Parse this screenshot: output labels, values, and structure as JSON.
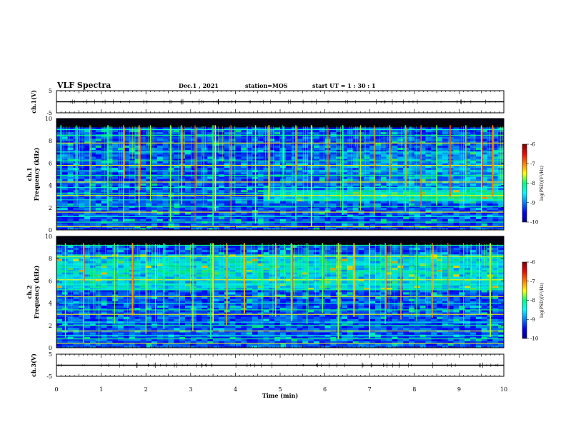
{
  "header": {
    "title": "VLF Spectra",
    "date": "Dec.1  , 2021",
    "station": "station=MOS",
    "start": "start  UT =   1 : 30 : 1"
  },
  "chart_data": [
    {
      "type": "line",
      "name": "ch1-waveform",
      "ylabel": "ch.1(V)",
      "ylim": [
        -5,
        5
      ],
      "yticks": [
        5,
        -5
      ],
      "x": [
        0,
        10
      ],
      "values": [
        0,
        0
      ]
    },
    {
      "type": "heatmap",
      "name": "ch1-spectrogram",
      "ylabel": "ch.1\nFrequency (kHz)",
      "ylim": [
        0,
        10
      ],
      "yticks": [
        0,
        2,
        4,
        6,
        8,
        10
      ],
      "xlim": [
        0,
        10
      ],
      "colorbar": {
        "label": "log(PSD)(V²/Hz)",
        "range": [
          -10,
          -6
        ],
        "ticks": [
          -6,
          -7,
          -8,
          -9,
          -10
        ]
      },
      "horizontal_lines_khz": [
        0.3,
        0.7,
        1.2,
        1.6,
        2.1,
        2.7,
        3.1,
        3.3,
        3.8,
        4.3,
        4.9,
        5.3,
        5.8,
        6.2,
        7.0,
        7.8,
        8.5,
        9.0
      ],
      "bursts_min": [
        0.1,
        0.45,
        0.75,
        1.15,
        1.5,
        1.85,
        2.1,
        2.55,
        2.8,
        3.1,
        3.5,
        3.55,
        3.9,
        4.45,
        4.75,
        5.05,
        5.35,
        5.7,
        6.05,
        6.4,
        6.8,
        7.1,
        7.45,
        7.8,
        8.15,
        8.5,
        8.8,
        9.15,
        9.5,
        9.75
      ]
    },
    {
      "type": "heatmap",
      "name": "ch2-spectrogram",
      "ylabel": "ch.2\nFrequency (kHz)",
      "ylim": [
        0,
        10
      ],
      "yticks": [
        0,
        2,
        4,
        6,
        8,
        10
      ],
      "xlim": [
        0,
        10
      ],
      "colorbar": {
        "label": "log(PSD)(V²/Hz)",
        "range": [
          -10,
          -6
        ],
        "ticks": [
          -6,
          -7,
          -8,
          -9,
          -10
        ]
      },
      "horizontal_lines_khz": [
        0.4,
        0.8,
        1.1,
        1.5,
        2.0,
        2.3,
        3.0,
        3.4,
        4.0,
        4.6,
        5.2,
        5.7,
        6.1,
        6.8,
        7.5,
        8.2,
        9.2
      ],
      "bursts_min": [
        0.2,
        0.6,
        0.95,
        1.3,
        1.7,
        2.0,
        2.4,
        2.75,
        3.05,
        3.45,
        3.5,
        3.8,
        4.2,
        4.6,
        4.9,
        5.25,
        5.6,
        5.95,
        6.3,
        6.65,
        7.0,
        7.35,
        7.7,
        8.05,
        8.4,
        8.75,
        9.1,
        9.45,
        9.7
      ]
    },
    {
      "type": "line",
      "name": "ch3-waveform",
      "ylabel": "ch.3(V)",
      "ylim": [
        -5,
        5
      ],
      "yticks": [
        5,
        -5
      ],
      "x": [
        0,
        10
      ],
      "values": [
        0,
        0
      ]
    }
  ],
  "x_axis": {
    "label": "Time  (min)",
    "ticks": [
      0,
      1,
      2,
      3,
      4,
      5,
      6,
      7,
      8,
      9,
      10
    ]
  }
}
